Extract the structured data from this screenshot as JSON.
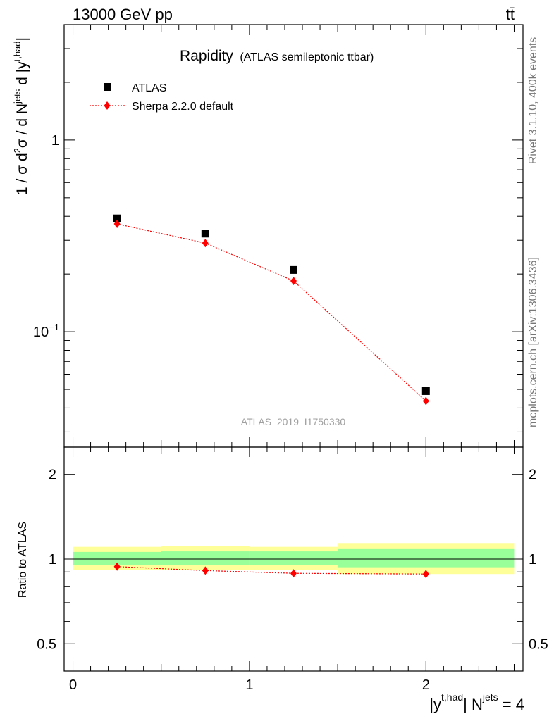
{
  "header": {
    "left_label": "13000 GeV pp",
    "right_label": "tt̄"
  },
  "chart_data": {
    "type": "scatter",
    "title": "Rapidity",
    "subtitle": "(ATLAS semileptonic ttbar)",
    "analysis_label": "ATLAS_2019_I1750330",
    "side_labels": {
      "rivet": "Rivet 3.1.10,  400k events",
      "site": "mcplots.cern.ch [arXiv:1306.3436]"
    },
    "ylabel": {
      "pre": "1 / σ d",
      "sup1": "2",
      "mid": "σ / d N",
      "sup2": "jets",
      "post": " d |y",
      "sup3": "t,had",
      "end": "|"
    },
    "xlabel": {
      "pre": "|y",
      "sup1": "t,had",
      "mid": "| N",
      "sup2": "jets",
      "post": " = 4"
    },
    "ratio_ylabel": "Ratio to ATLAS",
    "xlim": [
      -0.05,
      2.55
    ],
    "ylim": [
      0.025,
      4.0
    ],
    "yscale": "log",
    "ratio_ylim": [
      0.4,
      2.5
    ],
    "ratio_yscale": "log",
    "x_ticks": [
      "0",
      "1",
      "2"
    ],
    "y_ticks_main": [
      {
        "value": 1,
        "mantissa": "1",
        "exp": ""
      },
      {
        "value": 0.1,
        "mantissa": "10",
        "exp": "−1"
      }
    ],
    "y_ticks_ratio": [
      "0.5",
      "1",
      "2"
    ],
    "legend_position": "top-left",
    "bins": [
      [
        0,
        0.5
      ],
      [
        0.5,
        1.0
      ],
      [
        1.0,
        1.5
      ],
      [
        1.5,
        2.5
      ]
    ],
    "series": [
      {
        "name": "ATLAS",
        "marker": "square",
        "color": "#000000",
        "x": [
          0.25,
          0.75,
          1.25,
          2.0
        ],
        "y": [
          0.39,
          0.325,
          0.21,
          0.049
        ]
      },
      {
        "name": "Sherpa 2.2.0 default",
        "marker": "diamond",
        "line": "dotted",
        "color": "#ff0000",
        "x": [
          0.25,
          0.75,
          1.25,
          2.0
        ],
        "y": [
          0.365,
          0.29,
          0.184,
          0.0435
        ]
      }
    ],
    "ratio": {
      "x": [
        0.25,
        0.75,
        1.25,
        2.0
      ],
      "y": [
        0.94,
        0.91,
        0.89,
        0.885
      ]
    },
    "bands": {
      "stat_color": "#99ff99",
      "total_color": "#ffff99",
      "inner": [
        [
          0.95,
          1.06
        ],
        [
          0.95,
          1.065
        ],
        [
          0.95,
          1.065
        ],
        [
          0.935,
          1.085
        ]
      ],
      "outer": [
        [
          0.915,
          1.105
        ],
        [
          0.915,
          1.11
        ],
        [
          0.915,
          1.105
        ],
        [
          0.885,
          1.14
        ]
      ]
    }
  }
}
